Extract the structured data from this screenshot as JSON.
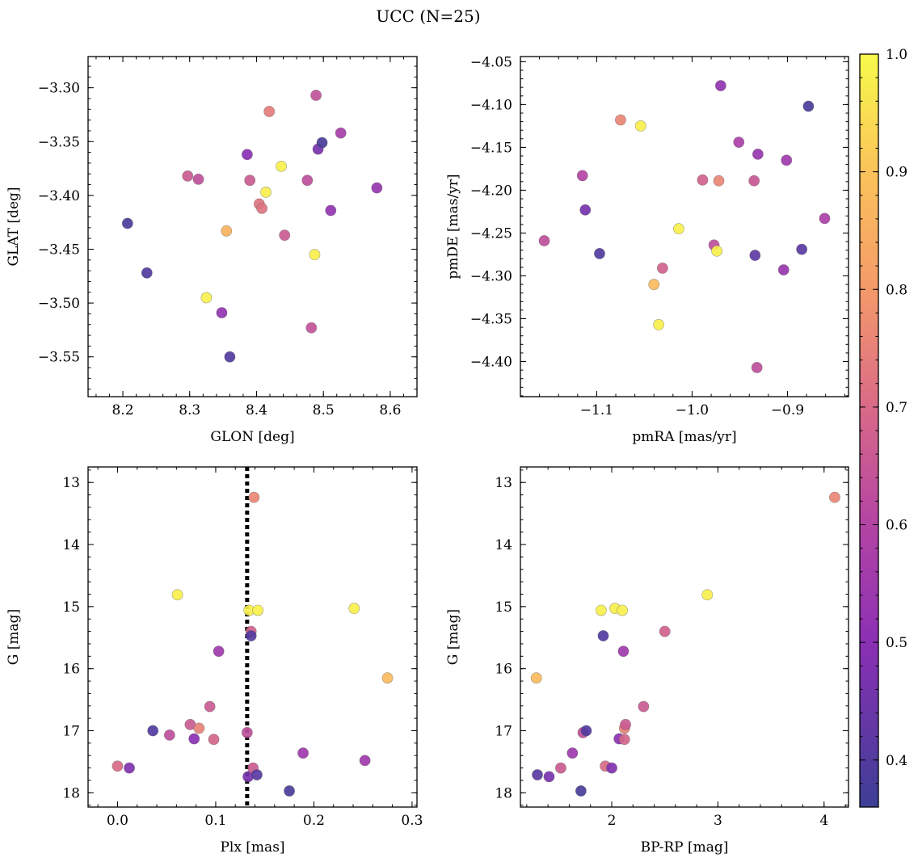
{
  "figure": {
    "title": "UCC (N=25)"
  },
  "chart_data": [
    {
      "type": "scatter",
      "xlabel": "GLON [deg]",
      "ylabel": "GLAT [deg]",
      "xlim": [
        8.148,
        8.64
      ],
      "ylim": [
        -3.587,
        -3.271
      ],
      "y_inverted": false,
      "xticks": [
        8.2,
        8.3,
        8.4,
        8.5,
        8.6
      ],
      "xtick_labels": [
        "8.2",
        "8.3",
        "8.4",
        "8.5",
        "8.6"
      ],
      "yticks": [
        -3.3,
        -3.35,
        -3.4,
        -3.45,
        -3.5,
        -3.55
      ],
      "ytick_labels": [
        "−3.30",
        "−3.35",
        "−3.40",
        "−3.45",
        "−3.50",
        "−3.55"
      ],
      "points": [
        {
          "x": 8.207,
          "y": -3.426,
          "c": 0.38
        },
        {
          "x": 8.236,
          "y": -3.472,
          "c": 0.4
        },
        {
          "x": 8.297,
          "y": -3.382,
          "c": 0.66
        },
        {
          "x": 8.313,
          "y": -3.385,
          "c": 0.63
        },
        {
          "x": 8.325,
          "y": -3.495,
          "c": 0.98
        },
        {
          "x": 8.348,
          "y": -3.509,
          "c": 0.52
        },
        {
          "x": 8.355,
          "y": -3.433,
          "c": 0.86
        },
        {
          "x": 8.36,
          "y": -3.55,
          "c": 0.4
        },
        {
          "x": 8.386,
          "y": -3.362,
          "c": 0.5
        },
        {
          "x": 8.39,
          "y": -3.386,
          "c": 0.66
        },
        {
          "x": 8.404,
          "y": -3.408,
          "c": 0.72
        },
        {
          "x": 8.408,
          "y": -3.412,
          "c": 0.72
        },
        {
          "x": 8.414,
          "y": -3.397,
          "c": 0.98
        },
        {
          "x": 8.419,
          "y": -3.322,
          "c": 0.74
        },
        {
          "x": 8.437,
          "y": -3.373,
          "c": 0.98
        },
        {
          "x": 8.442,
          "y": -3.437,
          "c": 0.66
        },
        {
          "x": 8.476,
          "y": -3.386,
          "c": 0.63
        },
        {
          "x": 8.482,
          "y": -3.523,
          "c": 0.64
        },
        {
          "x": 8.487,
          "y": -3.455,
          "c": 0.98
        },
        {
          "x": 8.489,
          "y": -3.307,
          "c": 0.64
        },
        {
          "x": 8.492,
          "y": -3.357,
          "c": 0.47
        },
        {
          "x": 8.498,
          "y": -3.351,
          "c": 0.38
        },
        {
          "x": 8.511,
          "y": -3.414,
          "c": 0.52
        },
        {
          "x": 8.526,
          "y": -3.342,
          "c": 0.57
        },
        {
          "x": 8.58,
          "y": -3.393,
          "c": 0.53
        }
      ]
    },
    {
      "type": "scatter",
      "xlabel": "pmRA [mas/yr]",
      "ylabel": "pmDE [mas/yr]",
      "xlim": [
        -1.18,
        -0.836
      ],
      "ylim": [
        -4.441,
        -4.044
      ],
      "y_inverted": false,
      "xticks": [
        -1.1,
        -1.0,
        -0.9
      ],
      "xtick_labels": [
        "−1.1",
        "−1.0",
        "−0.9"
      ],
      "yticks": [
        -4.05,
        -4.1,
        -4.15,
        -4.2,
        -4.25,
        -4.3,
        -4.35,
        -4.4
      ],
      "ytick_labels": [
        "−4.05",
        "−4.10",
        "−4.15",
        "−4.20",
        "−4.25",
        "−4.30",
        "−4.35",
        "−4.40"
      ],
      "points": [
        {
          "x": -1.155,
          "y": -4.259,
          "c": 0.63
        },
        {
          "x": -1.115,
          "y": -4.183,
          "c": 0.6
        },
        {
          "x": -1.112,
          "y": -4.223,
          "c": 0.46
        },
        {
          "x": -1.097,
          "y": -4.274,
          "c": 0.4
        },
        {
          "x": -1.075,
          "y": -4.118,
          "c": 0.76
        },
        {
          "x": -1.054,
          "y": -4.125,
          "c": 0.98
        },
        {
          "x": -1.04,
          "y": -4.31,
          "c": 0.88
        },
        {
          "x": -1.035,
          "y": -4.357,
          "c": 0.98
        },
        {
          "x": -1.031,
          "y": -4.291,
          "c": 0.68
        },
        {
          "x": -1.014,
          "y": -4.245,
          "c": 0.98
        },
        {
          "x": -0.989,
          "y": -4.188,
          "c": 0.68
        },
        {
          "x": -0.977,
          "y": -4.264,
          "c": 0.63
        },
        {
          "x": -0.974,
          "y": -4.271,
          "c": 0.98
        },
        {
          "x": -0.972,
          "y": -4.189,
          "c": 0.76
        },
        {
          "x": -0.97,
          "y": -4.078,
          "c": 0.52
        },
        {
          "x": -0.951,
          "y": -4.144,
          "c": 0.58
        },
        {
          "x": -0.935,
          "y": -4.189,
          "c": 0.65
        },
        {
          "x": -0.934,
          "y": -4.276,
          "c": 0.42
        },
        {
          "x": -0.932,
          "y": -4.407,
          "c": 0.63
        },
        {
          "x": -0.931,
          "y": -4.158,
          "c": 0.53
        },
        {
          "x": -0.904,
          "y": -4.293,
          "c": 0.53
        },
        {
          "x": -0.901,
          "y": -4.165,
          "c": 0.55
        },
        {
          "x": -0.885,
          "y": -4.269,
          "c": 0.41
        },
        {
          "x": -0.878,
          "y": -4.102,
          "c": 0.38
        },
        {
          "x": -0.861,
          "y": -4.233,
          "c": 0.58
        }
      ]
    },
    {
      "type": "scatter",
      "xlabel": "Plx [mas]",
      "ylabel": "G [mag]",
      "xlim": [
        -0.03,
        0.305
      ],
      "ylim": [
        18.23,
        12.75
      ],
      "y_inverted": true,
      "xticks": [
        0.0,
        0.1,
        0.2,
        0.3
      ],
      "xtick_labels": [
        "0.0",
        "0.1",
        "0.2",
        "0.3"
      ],
      "yticks": [
        13,
        14,
        15,
        16,
        17,
        18
      ],
      "ytick_labels": [
        "13",
        "14",
        "15",
        "16",
        "17",
        "18"
      ],
      "vline": {
        "x": 0.132,
        "style": "dotted",
        "color": "#000000"
      },
      "points": [
        {
          "x": 0.0,
          "y": 17.57,
          "c": 0.7
        },
        {
          "x": 0.012,
          "y": 17.6,
          "c": 0.48
        },
        {
          "x": 0.036,
          "y": 17.0,
          "c": 0.4
        },
        {
          "x": 0.053,
          "y": 17.07,
          "c": 0.63
        },
        {
          "x": 0.061,
          "y": 14.81,
          "c": 0.98
        },
        {
          "x": 0.074,
          "y": 16.9,
          "c": 0.66
        },
        {
          "x": 0.078,
          "y": 17.13,
          "c": 0.5
        },
        {
          "x": 0.083,
          "y": 16.96,
          "c": 0.75
        },
        {
          "x": 0.094,
          "y": 16.61,
          "c": 0.66
        },
        {
          "x": 0.098,
          "y": 17.14,
          "c": 0.69
        },
        {
          "x": 0.103,
          "y": 15.72,
          "c": 0.55
        },
        {
          "x": 0.132,
          "y": 17.03,
          "c": 0.63
        },
        {
          "x": 0.133,
          "y": 17.74,
          "c": 0.47
        },
        {
          "x": 0.134,
          "y": 15.06,
          "c": 0.98
        },
        {
          "x": 0.136,
          "y": 15.4,
          "c": 0.68
        },
        {
          "x": 0.136,
          "y": 15.47,
          "c": 0.4
        },
        {
          "x": 0.138,
          "y": 17.6,
          "c": 0.66
        },
        {
          "x": 0.139,
          "y": 13.24,
          "c": 0.76
        },
        {
          "x": 0.142,
          "y": 17.71,
          "c": 0.41
        },
        {
          "x": 0.143,
          "y": 15.06,
          "c": 0.98
        },
        {
          "x": 0.175,
          "y": 17.97,
          "c": 0.38
        },
        {
          "x": 0.189,
          "y": 17.36,
          "c": 0.55
        },
        {
          "x": 0.241,
          "y": 15.03,
          "c": 0.98
        },
        {
          "x": 0.252,
          "y": 17.48,
          "c": 0.55
        },
        {
          "x": 0.275,
          "y": 16.15,
          "c": 0.88
        }
      ]
    },
    {
      "type": "scatter",
      "xlabel": "BP-RP [mag]",
      "ylabel": "G [mag]",
      "xlim": [
        1.14,
        4.23
      ],
      "ylim": [
        18.23,
        12.75
      ],
      "y_inverted": true,
      "xticks": [
        2,
        3,
        4
      ],
      "xtick_labels": [
        "2",
        "3",
        "4"
      ],
      "yticks": [
        13,
        14,
        15,
        16,
        17,
        18
      ],
      "ytick_labels": [
        "13",
        "14",
        "15",
        "16",
        "17",
        "18"
      ],
      "points": [
        {
          "x": 1.29,
          "y": 16.15,
          "c": 0.88
        },
        {
          "x": 1.3,
          "y": 17.71,
          "c": 0.41
        },
        {
          "x": 1.41,
          "y": 17.74,
          "c": 0.47
        },
        {
          "x": 1.52,
          "y": 17.6,
          "c": 0.66
        },
        {
          "x": 1.63,
          "y": 17.36,
          "c": 0.55
        },
        {
          "x": 1.71,
          "y": 17.97,
          "c": 0.38
        },
        {
          "x": 1.73,
          "y": 17.03,
          "c": 0.63
        },
        {
          "x": 1.76,
          "y": 17.0,
          "c": 0.4
        },
        {
          "x": 1.9,
          "y": 15.06,
          "c": 0.98
        },
        {
          "x": 1.92,
          "y": 15.47,
          "c": 0.4
        },
        {
          "x": 1.94,
          "y": 17.57,
          "c": 0.7
        },
        {
          "x": 2.0,
          "y": 17.6,
          "c": 0.48
        },
        {
          "x": 2.03,
          "y": 15.03,
          "c": 0.98
        },
        {
          "x": 2.07,
          "y": 17.13,
          "c": 0.5
        },
        {
          "x": 2.1,
          "y": 15.06,
          "c": 0.98
        },
        {
          "x": 2.11,
          "y": 15.72,
          "c": 0.55
        },
        {
          "x": 2.12,
          "y": 16.96,
          "c": 0.75
        },
        {
          "x": 2.12,
          "y": 17.14,
          "c": 0.69
        },
        {
          "x": 2.13,
          "y": 16.9,
          "c": 0.66
        },
        {
          "x": 2.3,
          "y": 16.61,
          "c": 0.66
        },
        {
          "x": 2.5,
          "y": 15.4,
          "c": 0.68
        },
        {
          "x": 2.9,
          "y": 14.81,
          "c": 0.98
        },
        {
          "x": 4.1,
          "y": 13.24,
          "c": 0.76
        }
      ]
    }
  ],
  "colorbar": {
    "colormap": "plasma",
    "range": [
      0.36,
      1.0
    ],
    "ticks": [
      0.4,
      0.5,
      0.6,
      0.7,
      0.8,
      0.9,
      1.0
    ],
    "tick_labels": [
      "0.4",
      "0.5",
      "0.6",
      "0.7",
      "0.8",
      "0.9",
      "1.0"
    ],
    "stops": [
      {
        "v": 0.36,
        "color": "#3d3f96"
      },
      {
        "v": 0.5,
        "color": "#8b30b4"
      },
      {
        "v": 0.6,
        "color": "#b344a4"
      },
      {
        "v": 0.7,
        "color": "#d96a87"
      },
      {
        "v": 0.8,
        "color": "#f49a6a"
      },
      {
        "v": 0.9,
        "color": "#fbc35a"
      },
      {
        "v": 1.0,
        "color": "#f7fb4b"
      }
    ]
  }
}
